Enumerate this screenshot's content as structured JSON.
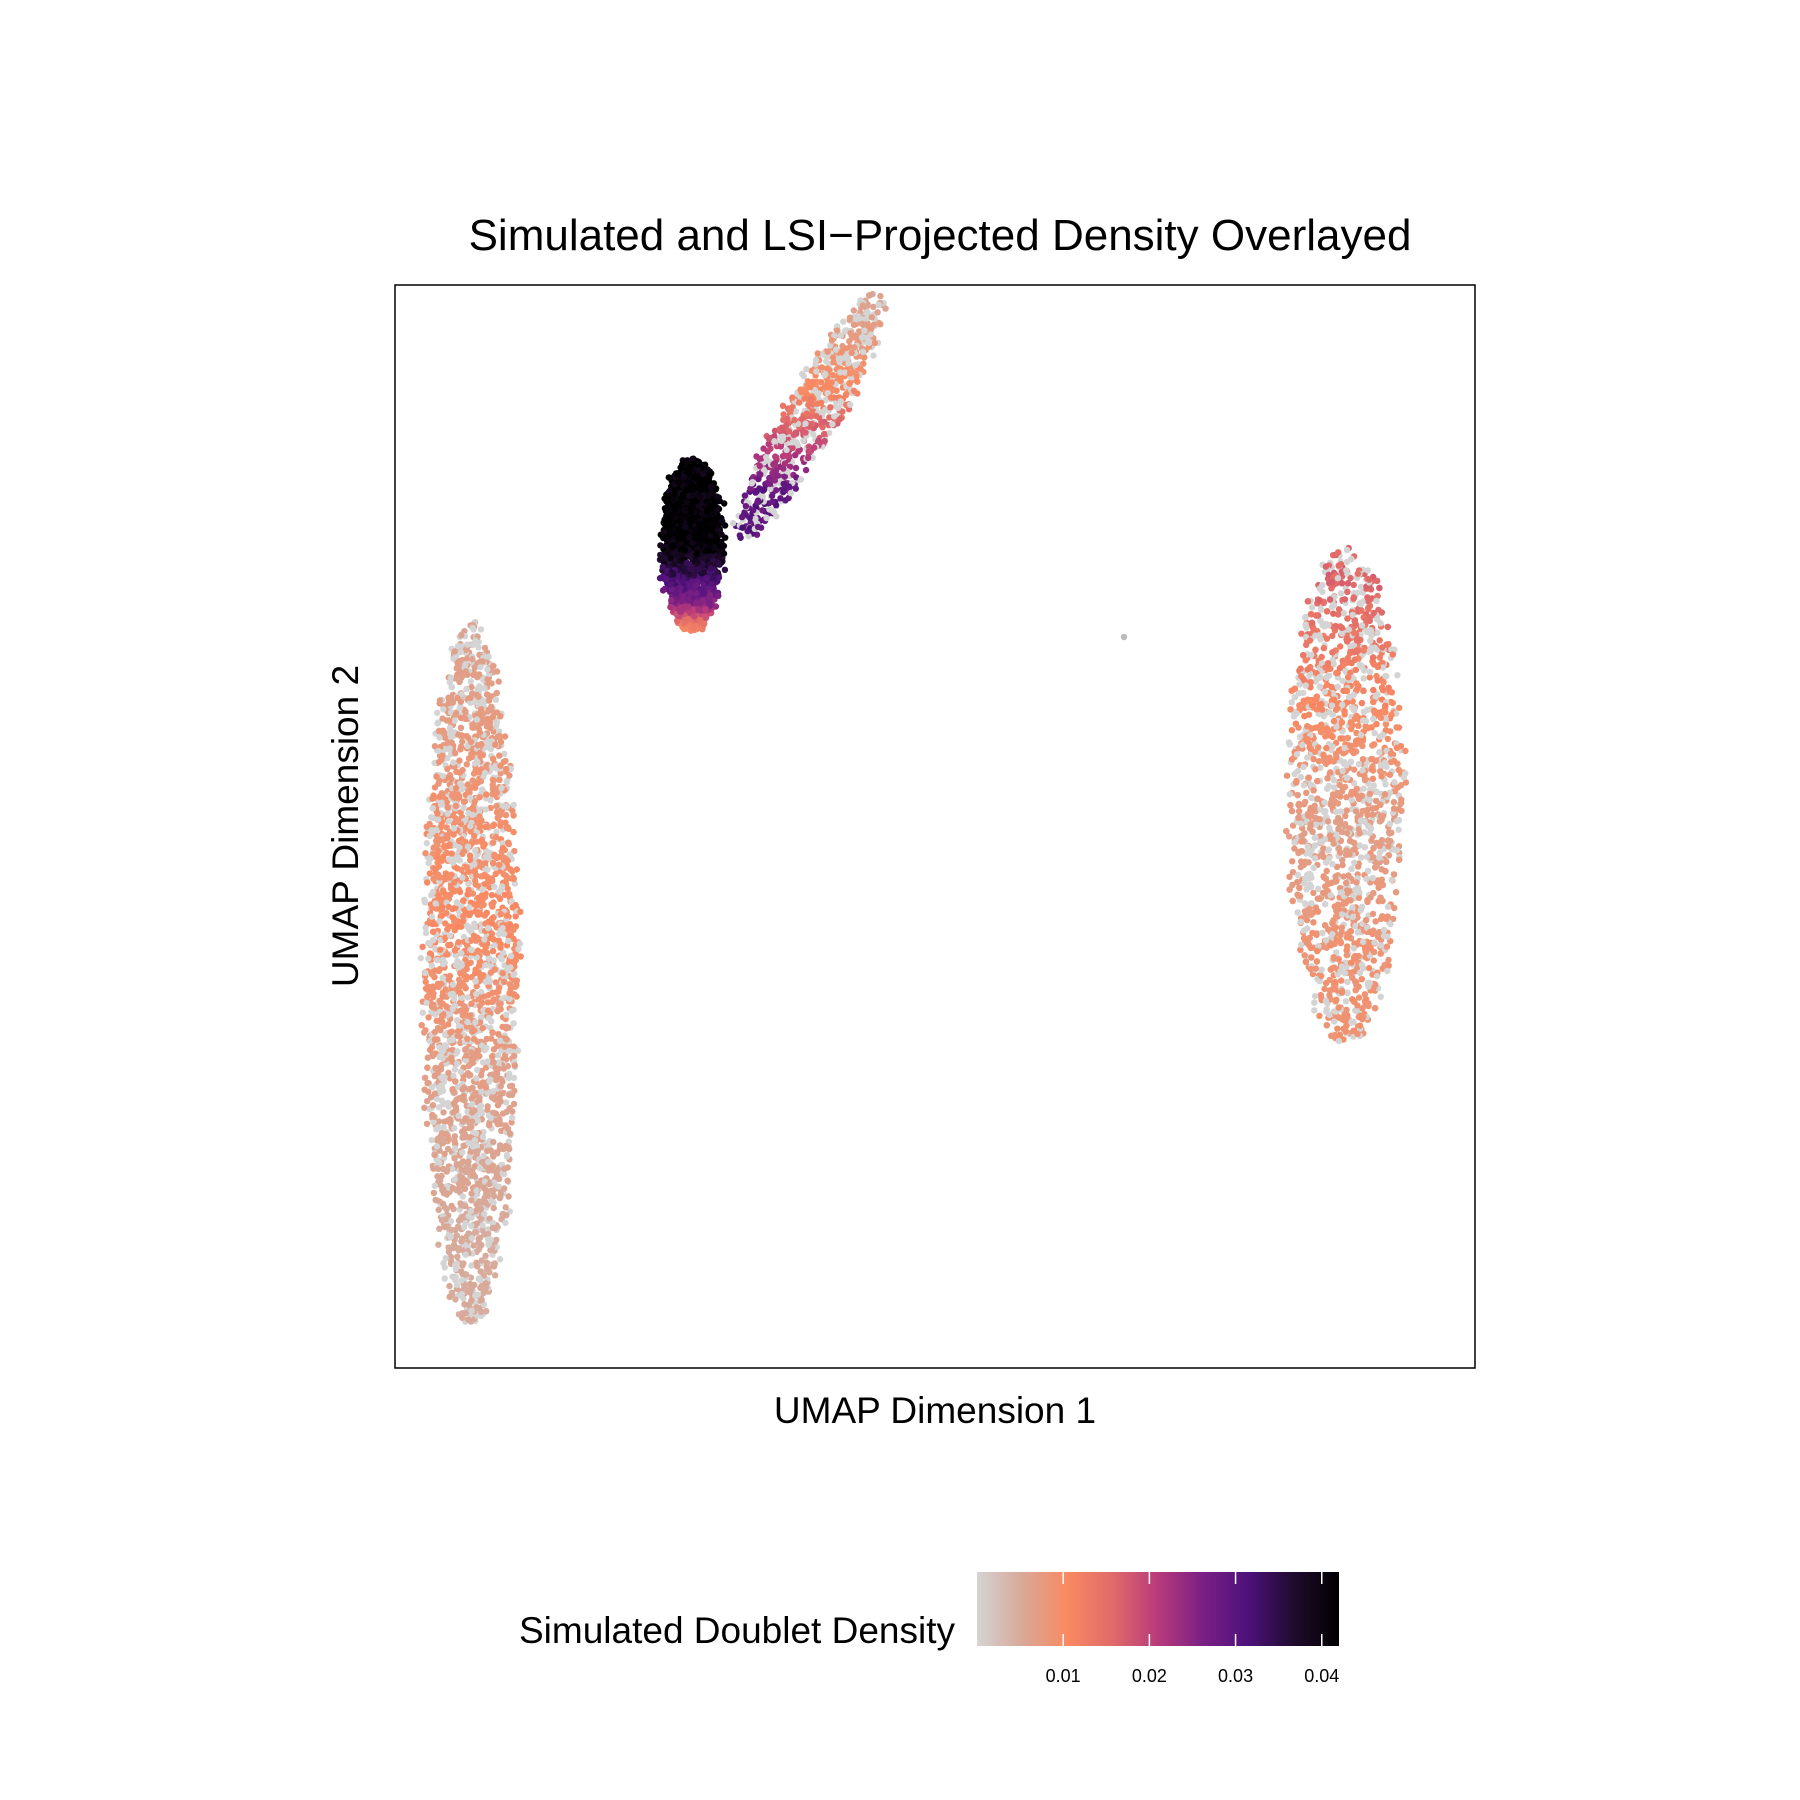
{
  "chart_data": {
    "type": "scatter",
    "title": "Simulated and LSI−Projected Density Overlayed",
    "xlabel": "UMAP Dimension 1",
    "ylabel": "UMAP Dimension 2",
    "xlim": [
      -9,
      11
    ],
    "ylim": [
      -9,
      11
    ],
    "axis_ticks_shown": false,
    "grid": false,
    "legend": {
      "title": "Simulated Doublet Density",
      "placement": "bottom",
      "type": "colorbar",
      "range": [
        0.0,
        0.042
      ],
      "ticks": [
        0.01,
        0.02,
        0.03,
        0.04
      ],
      "tick_labels": [
        "0.01",
        "0.02",
        "0.03",
        "0.04"
      ],
      "palette": [
        "#d4d4d4",
        "#d8a898",
        "#f98a62",
        "#e06a6a",
        "#b83a7a",
        "#7a1f84",
        "#4d117b",
        "#1f0b2e",
        "#000000"
      ]
    },
    "null_color": "#d4d4d4",
    "clusters": [
      {
        "id": "left-cluster",
        "center": [
          -7.6,
          -1.7
        ],
        "half_extent": [
          0.85,
          6.5
        ],
        "cell_count_shown": 2600,
        "density_profile": [
          {
            "y": 4.5,
            "density": 0.006
          },
          {
            "y": 1.5,
            "density": 0.009
          },
          {
            "y": -1.0,
            "density": 0.0105
          },
          {
            "y": -3.5,
            "density": 0.007
          },
          {
            "y": -6.5,
            "density": 0.005
          }
        ]
      },
      {
        "id": "top-cluster",
        "center": [
          -3.5,
          6.2
        ],
        "half_extent": [
          0.55,
          1.6
        ],
        "cell_count_shown": 1800,
        "density_profile": [
          {
            "y": 7.2,
            "density": 0.042
          },
          {
            "y": 6.2,
            "density": 0.042
          },
          {
            "y": 5.1,
            "density": 0.025
          },
          {
            "y": 4.7,
            "density": 0.012
          }
        ]
      },
      {
        "id": "top-arm",
        "center": [
          -1.3,
          8.6
        ],
        "half_extent": [
          0.8,
          2.3
        ],
        "cell_count_shown": 700,
        "density_profile": [
          {
            "y": 10.6,
            "density": 0.006
          },
          {
            "y": 9.0,
            "density": 0.011
          },
          {
            "y": 7.8,
            "density": 0.022
          },
          {
            "y": 7.1,
            "density": 0.03
          }
        ]
      },
      {
        "id": "right-cluster",
        "center": [
          8.6,
          1.6
        ],
        "half_extent": [
          1.05,
          4.6
        ],
        "cell_count_shown": 2300,
        "density_profile": [
          {
            "y": 5.4,
            "density": 0.016
          },
          {
            "y": 3.5,
            "density": 0.011
          },
          {
            "y": 1.0,
            "density": 0.007
          },
          {
            "y": -1.5,
            "density": 0.009
          }
        ]
      },
      {
        "id": "outlier-point",
        "center": [
          4.5,
          4.5
        ],
        "half_extent": [
          0,
          0
        ],
        "cell_count_shown": 1,
        "density_profile": [
          {
            "y": 4.5,
            "density": 0.0
          }
        ]
      }
    ]
  }
}
